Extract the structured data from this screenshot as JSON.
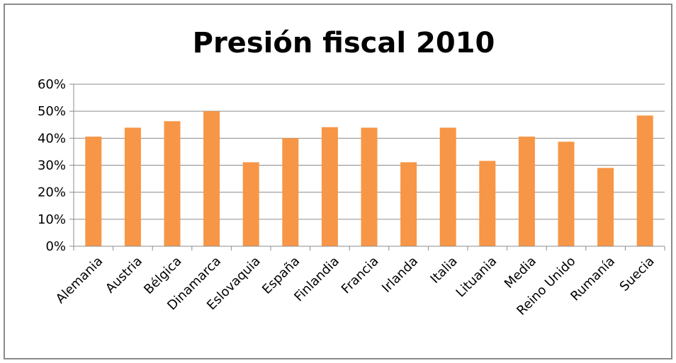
{
  "chart_data": {
    "type": "bar",
    "title": "Presión fiscal 2010",
    "xlabel": "",
    "ylabel": "",
    "categories": [
      "Alemania",
      "Austria",
      "Bélgica",
      "Dinamarca",
      "Eslovaquia",
      "España",
      "Finlandia",
      "Francia",
      "Irlanda",
      "Italia",
      "Lituania",
      "Media",
      "Reino Unido",
      "Rumanía",
      "Suecia"
    ],
    "values": [
      40.6,
      43.9,
      46.3,
      50.0,
      31.1,
      40.0,
      44.1,
      43.9,
      31.1,
      43.9,
      31.6,
      40.6,
      38.7,
      29.0,
      48.4
    ],
    "ylim": [
      0,
      60
    ],
    "yticks": [
      0,
      10,
      20,
      30,
      40,
      50,
      60
    ],
    "ytick_labels": [
      "0%",
      "10%",
      "20%",
      "30%",
      "40%",
      "50%",
      "60%"
    ],
    "grid": true,
    "legend": "none",
    "bar_color": "#f79646",
    "grid_color": "#8c8c8c"
  }
}
